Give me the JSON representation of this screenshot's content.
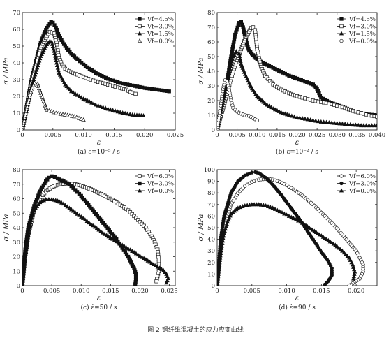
{
  "figure_caption": "图 2   钢纤维混凝土的应力应变曲线",
  "chart_data": [
    {
      "type": "line",
      "caption": "(a) ε̇=10⁻⁵ / s",
      "xlabel": "ε",
      "ylabel": "σ / MPa",
      "xlim": [
        0,
        0.025
      ],
      "ylim": [
        0,
        70
      ],
      "xticks": [
        "0",
        "0.005",
        "0.010",
        "0.015",
        "0.020",
        "0.025"
      ],
      "yticks": [
        "0",
        "10",
        "20",
        "30",
        "40",
        "50",
        "60",
        "70"
      ],
      "legend_position": "top-right",
      "series": [
        {
          "name": "Vf=4.5%",
          "marker": "square-filled",
          "x": [
            0,
            0.0015,
            0.003,
            0.004,
            0.0047,
            0.005,
            0.0055,
            0.006,
            0.007,
            0.008,
            0.009,
            0.01,
            0.012,
            0.014,
            0.016,
            0.018,
            0.02,
            0.022,
            0.024
          ],
          "y": [
            0,
            30,
            52,
            61,
            64.5,
            64,
            61,
            56,
            50,
            45.5,
            42,
            39,
            34,
            30.5,
            28,
            26.5,
            25,
            24,
            23
          ]
        },
        {
          "name": "Vf=3.0%",
          "marker": "square-open",
          "x": [
            0,
            0.0015,
            0.003,
            0.004,
            0.0045,
            0.0052,
            0.0056,
            0.006,
            0.0065,
            0.007,
            0.008,
            0.01,
            0.012,
            0.014,
            0.016,
            0.017,
            0.018,
            0.0185
          ],
          "y": [
            0,
            28,
            49,
            56,
            58.5,
            57.5,
            52,
            43,
            39,
            36.5,
            34.5,
            31.5,
            29,
            27,
            25,
            24,
            22,
            21.5
          ]
        },
        {
          "name": "Vf=1.5%",
          "marker": "triangle-filled",
          "x": [
            0,
            0.0015,
            0.003,
            0.004,
            0.0045,
            0.0048,
            0.0052,
            0.0056,
            0.006,
            0.007,
            0.008,
            0.01,
            0.012,
            0.014,
            0.016,
            0.018,
            0.0198
          ],
          "y": [
            0,
            26,
            44,
            51,
            53,
            52.5,
            47,
            40,
            34,
            27,
            23,
            18.5,
            15,
            12.5,
            10.5,
            9,
            8.5
          ]
        },
        {
          "name": "Vf=0.0%",
          "marker": "triangle-open",
          "x": [
            0,
            0.0008,
            0.0015,
            0.002,
            0.0025,
            0.003,
            0.004,
            0.0055,
            0.007,
            0.0085,
            0.01
          ],
          "y": [
            0,
            14,
            24,
            28,
            27.5,
            22,
            12,
            10,
            9,
            8,
            6
          ]
        }
      ]
    },
    {
      "type": "line",
      "caption": "(b) ε̇=10⁻² / s",
      "xlabel": "ε",
      "ylabel": "σ / MPa",
      "xlim": [
        0,
        0.04
      ],
      "ylim": [
        0,
        80
      ],
      "xticks": [
        "0",
        "0.005",
        "0.010",
        "0.015",
        "0.020",
        "0.025",
        "0.030",
        "0.035",
        "0.040"
      ],
      "yticks": [
        "0",
        "10",
        "20",
        "30",
        "40",
        "50",
        "60",
        "70",
        "80"
      ],
      "legend_position": "top-right",
      "series": [
        {
          "name": "Vf=4.5%",
          "marker": "square-filled",
          "x": [
            0,
            0.002,
            0.0035,
            0.0045,
            0.0055,
            0.006,
            0.0065,
            0.007,
            0.0075,
            0.008,
            0.009,
            0.01,
            0.012,
            0.015,
            0.018,
            0.02,
            0.022,
            0.024,
            0.025,
            0.026,
            0.028,
            0.03,
            0.032,
            0.034,
            0.036,
            0.038,
            0.04
          ],
          "y": [
            0,
            25,
            50,
            65,
            73,
            73.5,
            70,
            64,
            58,
            54,
            51,
            48,
            45,
            41,
            37,
            35,
            33,
            31,
            28,
            22,
            19,
            17,
            15,
            13,
            11.5,
            10.5,
            10
          ]
        },
        {
          "name": "Vf=3.0%",
          "marker": "square-open",
          "x": [
            0,
            0.002,
            0.004,
            0.006,
            0.007,
            0.008,
            0.0085,
            0.009,
            0.0095,
            0.01,
            0.011,
            0.012,
            0.014,
            0.016,
            0.018,
            0.02,
            0.022,
            0.024,
            0.026,
            0.028,
            0.03,
            0.032,
            0.034,
            0.036,
            0.038,
            0.04
          ],
          "y": [
            0,
            20,
            40,
            55,
            62,
            67,
            69.5,
            70,
            68,
            55,
            43,
            37,
            31,
            27.5,
            25,
            23,
            21.5,
            20,
            19,
            18,
            16.5,
            15,
            13,
            11.5,
            10,
            9
          ]
        },
        {
          "name": "Vf=1.5%",
          "marker": "triangle-filled",
          "x": [
            0,
            0.0015,
            0.003,
            0.004,
            0.0048,
            0.0055,
            0.006,
            0.007,
            0.008,
            0.009,
            0.01,
            0.012,
            0.014,
            0.016,
            0.018,
            0.02,
            0.022,
            0.024,
            0.026,
            0.028,
            0.03,
            0.032,
            0.034,
            0.036,
            0.038,
            0.04
          ],
          "y": [
            0,
            20,
            40,
            50,
            53.5,
            52,
            45,
            38,
            32,
            27,
            23,
            18,
            14.5,
            12,
            10,
            8.5,
            7.5,
            6.5,
            5.5,
            5,
            4.5,
            4,
            3.5,
            3,
            3,
            3
          ]
        },
        {
          "name": "Vf=0.0%",
          "marker": "circle-open",
          "x": [
            0,
            0.0008,
            0.0015,
            0.002,
            0.0025,
            0.003,
            0.0035,
            0.004,
            0.005,
            0.006,
            0.007,
            0.008,
            0.009,
            0.01
          ],
          "y": [
            0,
            15,
            28,
            34,
            33,
            27,
            20,
            15,
            12.5,
            11,
            10,
            9.5,
            8,
            6.5
          ]
        }
      ]
    },
    {
      "type": "line",
      "caption": "(c) ε̇=50 / s",
      "xlabel": "ε",
      "ylabel": "σ / MPa",
      "xlim": [
        0,
        0.026
      ],
      "ylim": [
        0,
        80
      ],
      "xticks": [
        "0",
        "0.005",
        "0.010",
        "0.015",
        "0.020",
        "0.025"
      ],
      "yticks": [
        "0",
        "10",
        "20",
        "30",
        "40",
        "50",
        "60",
        "70",
        "80"
      ],
      "legend_position": "top-right",
      "series": [
        {
          "name": "Vf=6.0%",
          "marker": "square-open",
          "x": [
            0,
            0.0005,
            0.001,
            0.002,
            0.003,
            0.004,
            0.005,
            0.006,
            0.007,
            0.008,
            0.009,
            0.01,
            0.011,
            0.012,
            0.013,
            0.014,
            0.015,
            0.016,
            0.017,
            0.018,
            0.019,
            0.02,
            0.021,
            0.022,
            0.0225,
            0.023,
            0.0232,
            0.0232,
            0.0228
          ],
          "y": [
            0,
            20,
            35,
            52,
            60,
            65,
            68,
            69.5,
            70.3,
            70.5,
            70,
            69,
            67.5,
            66,
            64,
            62,
            60,
            57.5,
            55,
            52,
            48,
            44,
            40,
            34,
            30,
            25,
            18,
            10,
            3
          ]
        },
        {
          "name": "Vf=3.0%",
          "marker": "square-filled",
          "x": [
            0,
            0.0005,
            0.001,
            0.002,
            0.003,
            0.004,
            0.0045,
            0.005,
            0.0055,
            0.006,
            0.007,
            0.008,
            0.009,
            0.01,
            0.011,
            0.012,
            0.013,
            0.014,
            0.015,
            0.016,
            0.017,
            0.018,
            0.0185,
            0.019,
            0.0193,
            0.0193,
            0.0192
          ],
          "y": [
            0,
            25,
            40,
            55,
            65,
            72,
            74.5,
            75.5,
            75,
            74,
            72,
            70,
            66,
            62,
            57,
            52,
            47,
            42,
            37,
            32,
            26,
            20,
            16,
            12,
            8,
            4,
            1
          ]
        },
        {
          "name": "Vf=0.0%",
          "marker": "triangle-filled",
          "x": [
            0,
            0.0005,
            0.001,
            0.0015,
            0.002,
            0.003,
            0.004,
            0.005,
            0.006,
            0.007,
            0.008,
            0.009,
            0.01,
            0.011,
            0.012,
            0.013,
            0.014,
            0.015,
            0.016,
            0.017,
            0.018,
            0.019,
            0.02,
            0.021,
            0.022,
            0.023,
            0.024,
            0.0245,
            0.0248,
            0.0245
          ],
          "y": [
            0,
            20,
            35,
            45,
            52,
            57.5,
            59.5,
            59.5,
            58.5,
            56.5,
            53.5,
            50.5,
            47.5,
            44.5,
            41.5,
            38.5,
            35.5,
            33,
            30.5,
            28,
            25.5,
            23,
            20.5,
            18,
            15.5,
            13,
            10.5,
            8,
            5,
            2
          ]
        }
      ]
    },
    {
      "type": "line",
      "caption": "(d) ε̇=90 / s",
      "xlabel": "ε",
      "ylabel": "σ / MPa",
      "xlim": [
        0,
        0.023
      ],
      "ylim": [
        0,
        100
      ],
      "xticks": [
        "0",
        "0.005",
        "0.010",
        "0.015",
        "0.020"
      ],
      "yticks": [
        "0",
        "10",
        "20",
        "30",
        "40",
        "50",
        "60",
        "70",
        "80",
        "90",
        "100"
      ],
      "legend_position": "top-right",
      "series": [
        {
          "name": "Vf=6.0%",
          "marker": "circle-open",
          "x": [
            0,
            0.0005,
            0.001,
            0.002,
            0.003,
            0.004,
            0.005,
            0.006,
            0.007,
            0.008,
            0.009,
            0.01,
            0.011,
            0.012,
            0.013,
            0.014,
            0.015,
            0.016,
            0.017,
            0.018,
            0.019,
            0.02,
            0.0205,
            0.021,
            0.021,
            0.0205,
            0.0195,
            0.019
          ],
          "y": [
            0,
            30,
            50,
            70,
            80,
            86,
            89.5,
            91.5,
            92,
            91.5,
            89.5,
            86.5,
            83,
            79,
            74,
            69,
            63,
            57,
            51,
            44,
            37,
            30,
            24,
            18,
            12,
            6,
            2,
            0
          ]
        },
        {
          "name": "Vf=3.0%",
          "marker": "circle-filled",
          "x": [
            0,
            0.0005,
            0.001,
            0.002,
            0.003,
            0.004,
            0.005,
            0.0055,
            0.006,
            0.007,
            0.008,
            0.009,
            0.01,
            0.011,
            0.012,
            0.013,
            0.014,
            0.015,
            0.016,
            0.0165,
            0.0165,
            0.016,
            0.0155
          ],
          "y": [
            0,
            40,
            60,
            80,
            90,
            95,
            97.5,
            98,
            97,
            93,
            87,
            80,
            72,
            64,
            56,
            47,
            38,
            29,
            21,
            15,
            9,
            4,
            1
          ]
        },
        {
          "name": "Vf=0.0%",
          "marker": "triangle-filled",
          "x": [
            0,
            0.0005,
            0.001,
            0.0015,
            0.002,
            0.003,
            0.004,
            0.005,
            0.006,
            0.007,
            0.008,
            0.009,
            0.01,
            0.011,
            0.012,
            0.013,
            0.014,
            0.015,
            0.016,
            0.017,
            0.018,
            0.019,
            0.0195,
            0.0198,
            0.0196
          ],
          "y": [
            0,
            28,
            45,
            55,
            62,
            67,
            69,
            70,
            70,
            69,
            67,
            64,
            61,
            58,
            55,
            51,
            47,
            43,
            39,
            35,
            30,
            24,
            18,
            12,
            6
          ]
        }
      ]
    }
  ]
}
